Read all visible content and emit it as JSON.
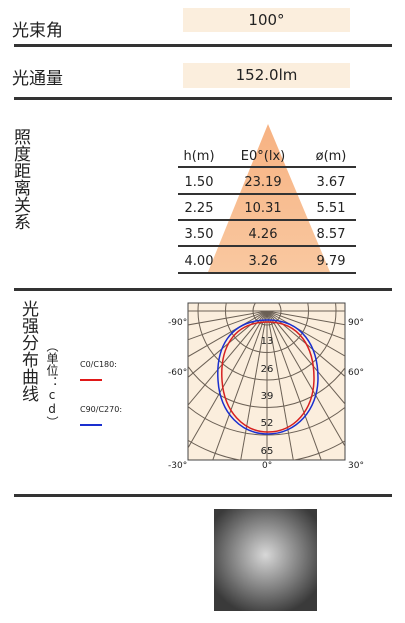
{
  "beam_angle": {
    "label": "光束角",
    "value": "100°"
  },
  "luminous_flux": {
    "label": "光通量",
    "value": "152.0lm"
  },
  "illuminance": {
    "label": "照度距离关系",
    "headers": [
      "h(m)",
      "E0°(lx)",
      "ø(m)"
    ],
    "rows": [
      [
        "1.50",
        "23.19",
        "3.67"
      ],
      [
        "2.25",
        "10.31",
        "5.51"
      ],
      [
        "3.50",
        "4.26",
        "8.57"
      ],
      [
        "4.00",
        "3.26",
        "9.79"
      ]
    ]
  },
  "intensity": {
    "label": "光强分布曲线",
    "unit": "（单位：cd）",
    "legend": [
      "C0/C180:",
      "C90/C270:"
    ],
    "angle_labels": [
      "-90°",
      "90°",
      "-60°",
      "60°",
      "-30°",
      "0°",
      "30°"
    ],
    "radial_labels": [
      "13",
      "26",
      "39",
      "52",
      "65"
    ]
  }
}
